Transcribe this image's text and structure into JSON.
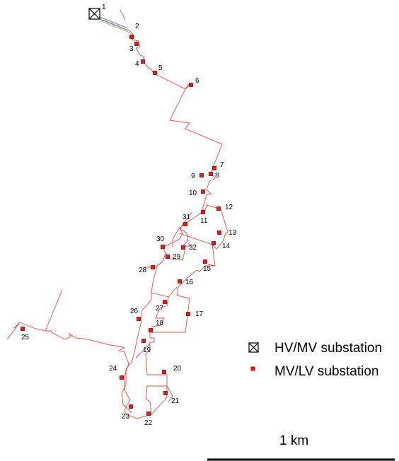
{
  "colors": {
    "feeder": "#e8473f",
    "mvlv_fill": "#e02020",
    "mvlv_outline": "#7a0000",
    "hvmv_symbol": "#000000",
    "hv_line_blue": "#4a90c8",
    "hv_line_green": "#3aa35a"
  },
  "hv_mv_substations": [
    {
      "id": "1",
      "icon": "boxed-x-icon"
    }
  ],
  "mv_lv_substations": [
    {
      "id": "2"
    },
    {
      "id": "3"
    },
    {
      "id": "4"
    },
    {
      "id": "5"
    },
    {
      "id": "6"
    },
    {
      "id": "7"
    },
    {
      "id": "8"
    },
    {
      "id": "9"
    },
    {
      "id": "10"
    },
    {
      "id": "11"
    },
    {
      "id": "12"
    },
    {
      "id": "13"
    },
    {
      "id": "14"
    },
    {
      "id": "15"
    },
    {
      "id": "16"
    },
    {
      "id": "17"
    },
    {
      "id": "18"
    },
    {
      "id": "19"
    },
    {
      "id": "20"
    },
    {
      "id": "21"
    },
    {
      "id": "22"
    },
    {
      "id": "23"
    },
    {
      "id": "24"
    },
    {
      "id": "25"
    },
    {
      "id": "26"
    },
    {
      "id": "27"
    },
    {
      "id": "28"
    },
    {
      "id": "29"
    },
    {
      "id": "30"
    },
    {
      "id": "31"
    },
    {
      "id": "32"
    }
  ],
  "legend": {
    "hvmv_label": "HV/MV substation",
    "hvmv_icon": "boxed-x-icon",
    "mvlv_label": "MV/LV substation",
    "mvlv_icon": "small-red-square-icon"
  },
  "scale_bar": {
    "label": "1 km"
  }
}
